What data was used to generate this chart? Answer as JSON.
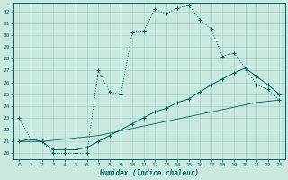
{
  "title": "",
  "xlabel": "Humidex (Indice chaleur)",
  "bg_color": "#c8e8e0",
  "grid_color": "#a8d0c8",
  "line_color": "#006060",
  "xlim": [
    -0.5,
    23.5
  ],
  "ylim": [
    19.5,
    32.7
  ],
  "yticks": [
    20,
    21,
    22,
    23,
    24,
    25,
    26,
    27,
    28,
    29,
    30,
    31,
    32
  ],
  "xticks": [
    0,
    1,
    2,
    3,
    4,
    5,
    6,
    7,
    8,
    9,
    10,
    11,
    12,
    13,
    14,
    15,
    16,
    17,
    18,
    19,
    20,
    21,
    22,
    23
  ],
  "line1_x": [
    0,
    1,
    2,
    3,
    4,
    5,
    6,
    7,
    8,
    9,
    10,
    11,
    12,
    13,
    14,
    15,
    16,
    17,
    18,
    19,
    20,
    21,
    22,
    23
  ],
  "line1_y": [
    23.0,
    21.2,
    21.0,
    20.0,
    20.0,
    20.0,
    20.0,
    27.0,
    25.2,
    25.0,
    30.2,
    30.3,
    32.2,
    31.8,
    32.3,
    32.5,
    31.3,
    30.5,
    28.2,
    28.5,
    27.2,
    25.8,
    25.4,
    24.5
  ],
  "line2_x": [
    0,
    1,
    2,
    3,
    4,
    5,
    6,
    7,
    8,
    9,
    10,
    11,
    12,
    13,
    14,
    15,
    16,
    17,
    18,
    19,
    20,
    21,
    22,
    23
  ],
  "line2_y": [
    21.0,
    21.2,
    21.0,
    20.3,
    20.3,
    20.3,
    20.5,
    21.0,
    21.5,
    22.0,
    22.5,
    23.0,
    23.5,
    23.8,
    24.3,
    24.6,
    25.2,
    25.8,
    26.3,
    26.8,
    27.2,
    26.5,
    25.8,
    25.0
  ],
  "line3_x": [
    0,
    1,
    2,
    3,
    4,
    5,
    6,
    7,
    8,
    9,
    10,
    11,
    12,
    13,
    14,
    15,
    16,
    17,
    18,
    19,
    20,
    21,
    22,
    23
  ],
  "line3_y": [
    21.0,
    21.0,
    21.0,
    21.1,
    21.2,
    21.3,
    21.4,
    21.5,
    21.7,
    21.9,
    22.1,
    22.3,
    22.5,
    22.7,
    22.9,
    23.1,
    23.3,
    23.5,
    23.7,
    23.9,
    24.1,
    24.3,
    24.4,
    24.5
  ]
}
